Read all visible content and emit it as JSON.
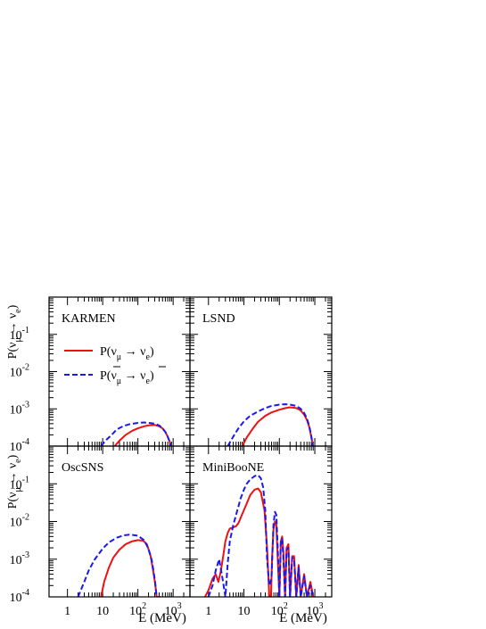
{
  "figure": {
    "ylabel": {
      "base": "P(",
      "nu1": "ν",
      "sub1": "μ",
      "arrow": " → ",
      "nu2": "ν",
      "sub2": "e",
      "close": ")"
    },
    "xlabel": "E (MeV)",
    "x_ticks": [
      {
        "base": "1",
        "exp": ""
      },
      {
        "base": "10",
        "exp": ""
      },
      {
        "base": "10",
        "exp": "2"
      },
      {
        "base": "10",
        "exp": "3"
      }
    ],
    "y_ticks": [
      {
        "base": "10",
        "exp": "-1"
      },
      {
        "base": "10",
        "exp": "-2"
      },
      {
        "base": "10",
        "exp": "-3"
      },
      {
        "base": "10",
        "exp": "-4"
      }
    ],
    "legend": {
      "placement": "top-left panel, upper-left",
      "entries": [
        {
          "prefix": "P(",
          "nu1": "ν",
          "bar": false,
          "sub1": "μ",
          "arrow": " → ",
          "nu2": "ν",
          "sub2": "e",
          "close": ")",
          "color": "#ee1111",
          "dash": "solid"
        },
        {
          "prefix": "P(",
          "nu1": "ν",
          "bar": true,
          "sub1": "μ",
          "arrow": " → ",
          "nu2": "ν",
          "sub2": "e",
          "close": ")",
          "color": "#1a1aee",
          "dash": "dashed"
        }
      ]
    }
  },
  "chart_data": [
    {
      "type": "line",
      "panel": "KARMEN",
      "xscale": "log",
      "yscale": "log",
      "xlim": [
        0.3,
        3000
      ],
      "ylim": [
        0.0001,
        1
      ],
      "series": [
        {
          "name": "P(νμ → νe)",
          "color": "#ee1111",
          "dash": "solid",
          "x": [
            22,
            30,
            45,
            70,
            100,
            150,
            200,
            300,
            400,
            500,
            600,
            700,
            800,
            880
          ],
          "y": [
            0.0001,
            0.00014,
            0.0002,
            0.00026,
            0.0003,
            0.00034,
            0.00036,
            0.00037,
            0.00034,
            0.0003,
            0.00024,
            0.00018,
            0.00013,
            0.0001
          ]
        },
        {
          "name": "P(ν̄μ → ν̄e)",
          "color": "#1a1aee",
          "dash": "dashed",
          "x": [
            9,
            12,
            18,
            25,
            40,
            60,
            100,
            150,
            200,
            300,
            400,
            500,
            600,
            700,
            800,
            880
          ],
          "y": [
            0.0001,
            0.00014,
            0.0002,
            0.00028,
            0.00035,
            0.00039,
            0.00042,
            0.00043,
            0.00042,
            0.0004,
            0.00036,
            0.0003,
            0.00024,
            0.00018,
            0.00013,
            0.0001
          ]
        }
      ]
    },
    {
      "type": "line",
      "panel": "LSND",
      "xscale": "log",
      "yscale": "log",
      "xlim": [
        0.3,
        3000
      ],
      "ylim": [
        0.0001,
        1
      ],
      "series": [
        {
          "name": "P(νμ → νe)",
          "color": "#ee1111",
          "dash": "solid",
          "x": [
            9,
            12,
            18,
            25,
            40,
            60,
            100,
            150,
            200,
            300,
            400,
            500,
            600,
            700,
            800,
            880
          ],
          "y": [
            0.0001,
            0.00017,
            0.0003,
            0.00045,
            0.00065,
            0.0008,
            0.00095,
            0.00105,
            0.0011,
            0.00105,
            0.0009,
            0.0007,
            0.0005,
            0.00032,
            0.00017,
            0.0001
          ]
        },
        {
          "name": "P(ν̄μ → ν̄e)",
          "color": "#1a1aee",
          "dash": "dashed",
          "x": [
            3.5,
            5,
            7,
            10,
            15,
            25,
            40,
            60,
            100,
            150,
            200,
            300,
            400,
            500,
            600,
            700,
            800,
            880
          ],
          "y": [
            0.0001,
            0.00018,
            0.0003,
            0.00046,
            0.00065,
            0.00085,
            0.00105,
            0.0012,
            0.0013,
            0.00133,
            0.0013,
            0.0012,
            0.001,
            0.00078,
            0.00055,
            0.00034,
            0.00018,
            0.0001
          ]
        }
      ]
    },
    {
      "type": "line",
      "panel": "OscSNS",
      "xscale": "log",
      "yscale": "log",
      "xlim": [
        0.3,
        3000
      ],
      "ylim": [
        0.0001,
        1
      ],
      "series": [
        {
          "name": "P(νμ → νe)",
          "color": "#ee1111",
          "dash": "solid",
          "x": [
            9,
            11,
            15,
            20,
            30,
            45,
            70,
            100,
            140,
            180,
            230,
            270,
            310,
            340,
            360,
            380,
            400,
            420,
            440
          ],
          "y": [
            0.0001,
            0.00025,
            0.0006,
            0.0011,
            0.0018,
            0.0025,
            0.003,
            0.0032,
            0.0031,
            0.0025,
            0.0012,
            0.0005,
            0.00022,
            0.0001,
            0.0001,
            0.0001,
            0.0001,
            0.0001,
            0.0001
          ]
        },
        {
          "name": "P(ν̄μ → ν̄e)",
          "color": "#1a1aee",
          "dash": "dashed",
          "x": [
            2,
            3,
            4,
            6,
            10,
            15,
            25,
            40,
            60,
            100,
            150,
            200,
            250,
            300,
            340
          ],
          "y": [
            0.0001,
            0.00025,
            0.0005,
            0.001,
            0.0019,
            0.0028,
            0.0037,
            0.0043,
            0.0045,
            0.0042,
            0.0032,
            0.0019,
            0.0009,
            0.0003,
            0.0001
          ]
        }
      ]
    },
    {
      "type": "line",
      "panel": "MiniBooNE",
      "xscale": "log",
      "yscale": "log",
      "xlim": [
        0.3,
        3000
      ],
      "ylim": [
        0.0001,
        1
      ],
      "series": [
        {
          "name": "P(νμ → νe)",
          "color": "#ee1111",
          "dash": "solid",
          "x": [
            0.8,
            1,
            1.3,
            1.6,
            1.9,
            2.2,
            2.6,
            3,
            3.5,
            4,
            5,
            6,
            7,
            8.5,
            10,
            12,
            15,
            20,
            25,
            30,
            38,
            45,
            52,
            58,
            62,
            68,
            75,
            82,
            90,
            100,
            110,
            120,
            130,
            145,
            160,
            180,
            200,
            230,
            260,
            300,
            350,
            400,
            500,
            600,
            750,
            900
          ],
          "y": [
            0.0001,
            0.00015,
            0.0003,
            0.0004,
            0.00025,
            0.00045,
            0.0012,
            0.003,
            0.005,
            0.0065,
            0.007,
            0.0075,
            0.009,
            0.014,
            0.02,
            0.03,
            0.05,
            0.07,
            0.075,
            0.06,
            0.02,
            0.002,
            0.0001,
            0.0001,
            0.001,
            0.006,
            0.01,
            0.008,
            0.001,
            0.0001,
            0.003,
            0.004,
            0.0015,
            0.0001,
            0.002,
            0.0025,
            0.0001,
            0.0012,
            0.0012,
            0.0001,
            0.0007,
            0.0001,
            0.0004,
            0.0001,
            0.00025,
            0.0001
          ]
        },
        {
          "name": "P(ν̄μ → ν̄e)",
          "color": "#1a1aee",
          "dash": "dashed",
          "x": [
            1,
            1.3,
            1.6,
            2,
            2.5,
            3,
            3.5,
            4,
            5,
            6,
            7,
            8,
            10,
            12,
            15,
            20,
            25,
            30,
            35,
            40,
            45,
            52,
            60,
            68,
            75,
            82,
            90,
            100,
            110,
            120,
            130,
            145,
            160,
            180,
            200,
            230,
            260,
            300,
            350,
            400,
            500,
            600,
            750,
            900
          ],
          "y": [
            0.0001,
            0.0002,
            0.0005,
            0.001,
            0.0003,
            0.0001,
            0.0008,
            0.003,
            0.008,
            0.015,
            0.025,
            0.04,
            0.07,
            0.1,
            0.13,
            0.16,
            0.17,
            0.14,
            0.08,
            0.02,
            0.001,
            0.0002,
            0.0003,
            0.008,
            0.018,
            0.015,
            0.002,
            0.0001,
            0.003,
            0.0035,
            0.001,
            0.0001,
            0.0018,
            0.002,
            0.0001,
            0.0011,
            0.001,
            0.0001,
            0.0006,
            0.0001,
            0.00035,
            0.0001,
            0.0002,
            0.0001
          ]
        }
      ]
    }
  ]
}
